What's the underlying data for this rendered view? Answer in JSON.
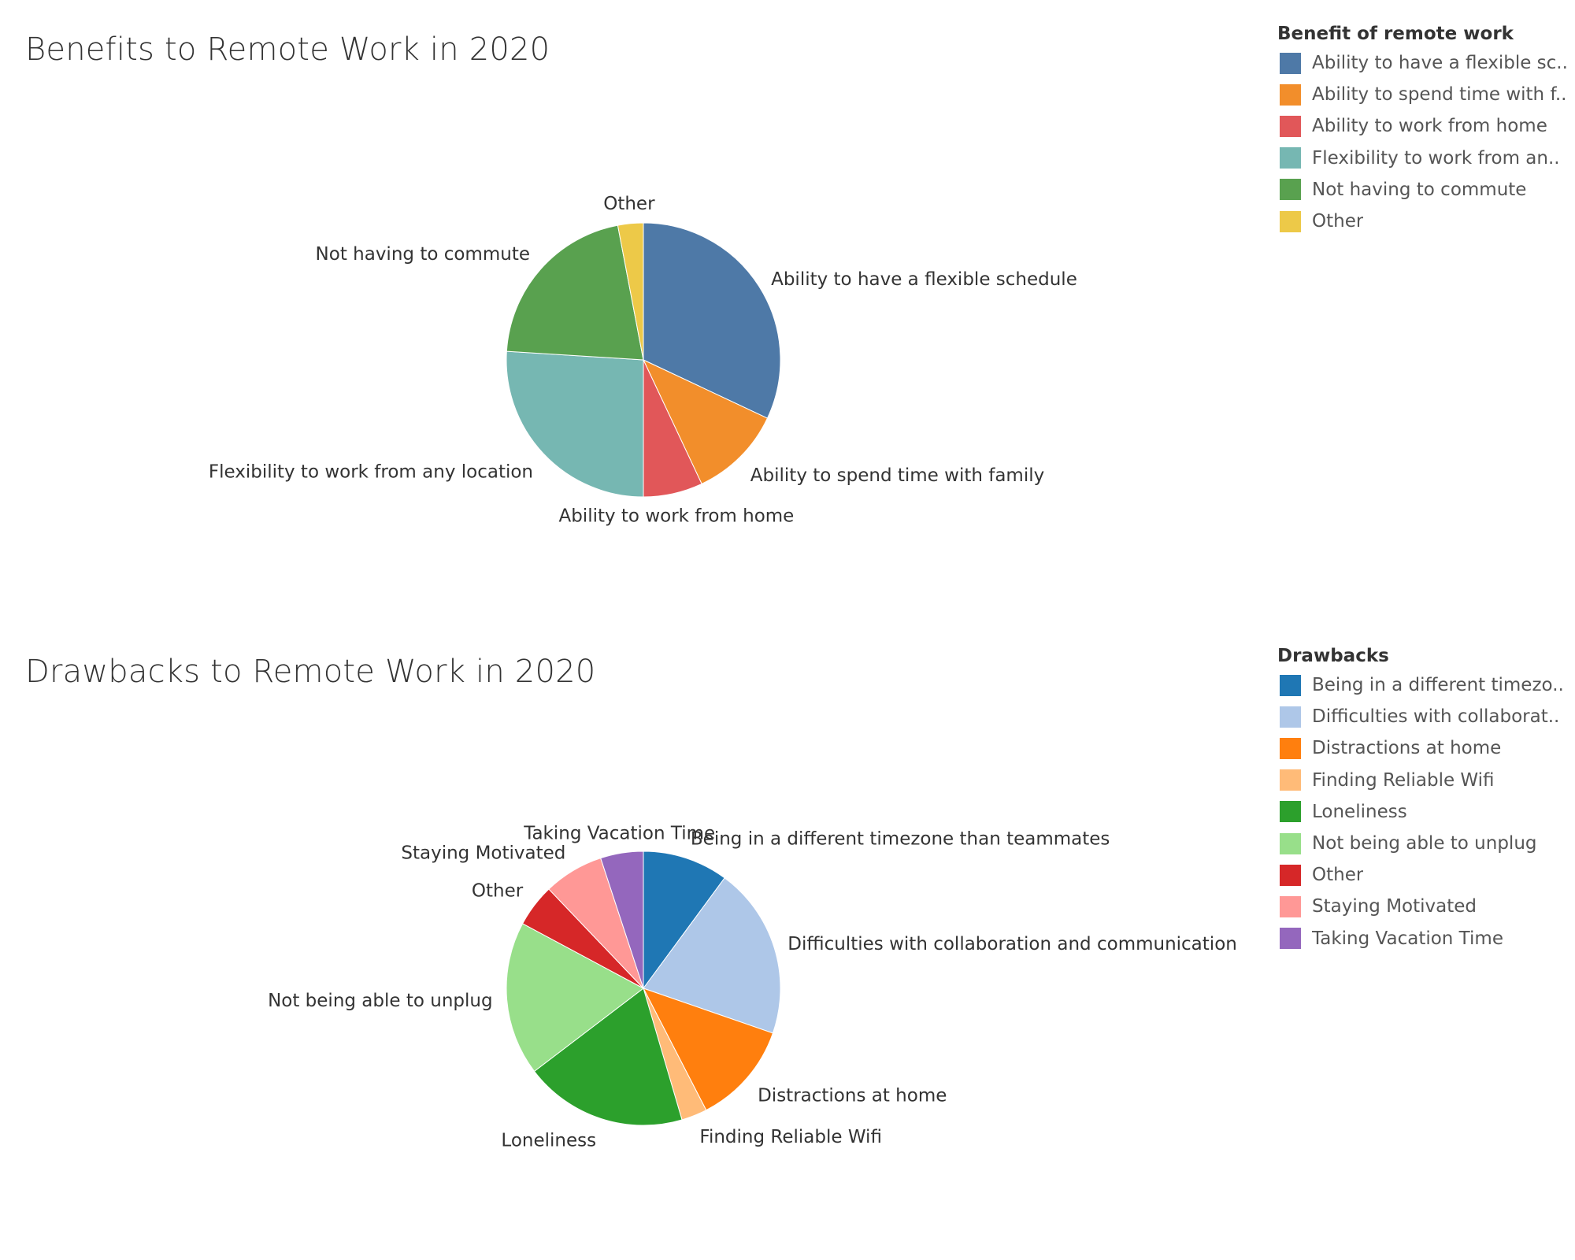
{
  "charts": [
    {
      "key": "benefits",
      "title": "Benefits to Remote Work in 2020",
      "legend": {
        "title": "Benefit of remote work",
        "items": [
          {
            "label": "Ability to have a flexible sc..",
            "color": "#4e79a7"
          },
          {
            "label": "Ability to spend time with f..",
            "color": "#f28e2b"
          },
          {
            "label": "Ability to work from home",
            "color": "#e15759"
          },
          {
            "label": "Flexibility to work from an..",
            "color": "#76b7b2"
          },
          {
            "label": "Not having to commute",
            "color": "#59a14f"
          },
          {
            "label": "Other",
            "color": "#edc948"
          }
        ]
      }
    },
    {
      "key": "drawbacks",
      "title": "Drawbacks to Remote Work in 2020",
      "legend": {
        "title": "Drawbacks",
        "items": [
          {
            "label": "Being in a different timezo..",
            "color": "#1f77b4"
          },
          {
            "label": "Difficulties with collaborat..",
            "color": "#aec7e8"
          },
          {
            "label": "Distractions at home",
            "color": "#ff7f0e"
          },
          {
            "label": "Finding Reliable Wifi",
            "color": "#ffbb78"
          },
          {
            "label": "Loneliness",
            "color": "#2ca02c"
          },
          {
            "label": "Not being able to unplug",
            "color": "#98df8a"
          },
          {
            "label": "Other",
            "color": "#d62728"
          },
          {
            "label": "Staying Motivated",
            "color": "#ff9896"
          },
          {
            "label": "Taking Vacation Time",
            "color": "#9467bd"
          }
        ]
      }
    }
  ],
  "chart_data": [
    {
      "type": "pie",
      "title": "Benefits to Remote Work in 2020",
      "legend_title": "Benefit of remote work",
      "legend_position": "right",
      "start_angle_deg": 0,
      "direction": "clockwise",
      "slices": [
        {
          "label": "Ability to have a flexible schedule",
          "value": 32,
          "color": "#4e79a7"
        },
        {
          "label": "Ability to spend time with family",
          "value": 11,
          "color": "#f28e2b"
        },
        {
          "label": "Ability to work from home",
          "value": 7,
          "color": "#e15759"
        },
        {
          "label": "Flexibility to work from any location",
          "value": 26,
          "color": "#76b7b2"
        },
        {
          "label": "Not having to commute",
          "value": 21,
          "color": "#59a14f"
        },
        {
          "label": "Other",
          "value": 3,
          "color": "#edc948"
        }
      ]
    },
    {
      "type": "pie",
      "title": "Drawbacks to Remote Work in 2020",
      "legend_title": "Drawbacks",
      "legend_position": "right",
      "start_angle_deg": 0,
      "direction": "clockwise",
      "slices": [
        {
          "label": "Being in a different timezone than teammates",
          "value": 10,
          "color": "#1f77b4"
        },
        {
          "label": "Difficulties with collaboration and communication",
          "value": 20,
          "color": "#aec7e8"
        },
        {
          "label": "Distractions at home",
          "value": 12,
          "color": "#ff7f0e"
        },
        {
          "label": "Finding Reliable Wifi",
          "value": 3,
          "color": "#ffbb78"
        },
        {
          "label": "Loneliness",
          "value": 19,
          "color": "#2ca02c"
        },
        {
          "label": "Not being able to unplug",
          "value": 18,
          "color": "#98df8a"
        },
        {
          "label": "Other",
          "value": 5,
          "color": "#d62728"
        },
        {
          "label": "Staying Motivated",
          "value": 7,
          "color": "#ff9896"
        },
        {
          "label": "Taking Vacation Time",
          "value": 5,
          "color": "#9467bd"
        }
      ]
    }
  ]
}
